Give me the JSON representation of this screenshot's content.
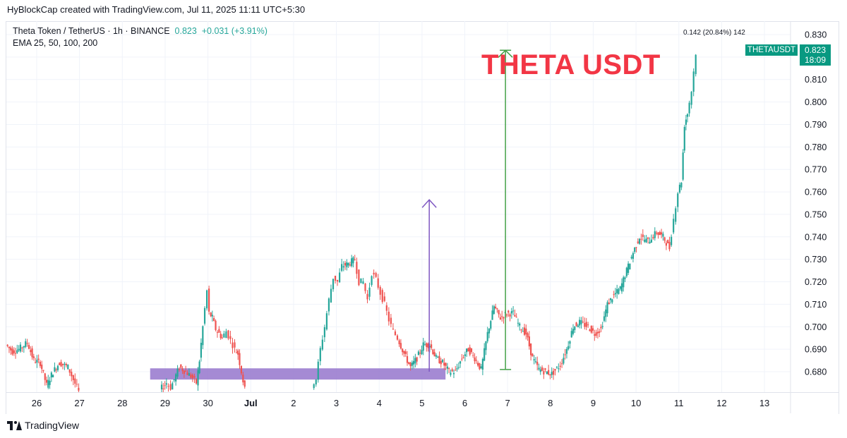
{
  "header": {
    "credit": "HyBlockCap created with TradingView.com, Jul 11, 2025 11:11 UTC+5:30"
  },
  "legend": {
    "symbol": "Theta Token / TetherUS · 1h · BINANCE",
    "last": "0.823",
    "change": "+0.031 (+3.91%)",
    "indicators": "EMA 25, 50, 100, 200"
  },
  "annotation": {
    "title": "THETA USDT",
    "measure": "0.142 (20.84%) 142"
  },
  "price_label": {
    "symbol": "THETAUSDT",
    "price": "0.823",
    "countdown": "18:09"
  },
  "footer": {
    "brand": "TradingView"
  },
  "colors": {
    "up": "#26a69a",
    "down": "#ef5350",
    "zone": "#9575cd",
    "arrow_purple": "#7e57c2",
    "arrow_green": "#43a047",
    "title": "#f23645"
  },
  "chart_data": {
    "type": "candlestick",
    "symbol": "THETAUSDT",
    "interval": "1h",
    "x_labels": [
      "26",
      "27",
      "28",
      "29",
      "30",
      "Jul",
      "2",
      "3",
      "4",
      "5",
      "6",
      "7",
      "8",
      "9",
      "10",
      "11",
      "12",
      "13"
    ],
    "y_ticks": [
      "0.830",
      "0.820",
      "0.810",
      "0.800",
      "0.790",
      "0.780",
      "0.770",
      "0.760",
      "0.750",
      "0.740",
      "0.730",
      "0.720",
      "0.710",
      "0.700",
      "0.690",
      "0.680"
    ],
    "ylim": [
      0.6715,
      0.8335
    ],
    "grid": true,
    "support_zone": {
      "from_day": 2.65,
      "to_day": 9.55,
      "low": 0.6765,
      "high": 0.6815
    },
    "measure_arrow": {
      "day": 10.95,
      "from": 0.681,
      "to": 0.823
    },
    "target_arrow": {
      "day": 9.17,
      "from": 0.68,
      "to": 0.7565
    },
    "path": [
      [
        -0.7,
        0.692
      ],
      [
        -0.55,
        0.689
      ],
      [
        -0.4,
        0.69
      ],
      [
        -0.2,
        0.693
      ],
      [
        -0.05,
        0.685
      ],
      [
        0.1,
        0.684
      ],
      [
        0.25,
        0.674
      ],
      [
        0.4,
        0.68
      ],
      [
        0.55,
        0.684
      ],
      [
        0.75,
        0.682
      ],
      [
        1.0,
        0.671
      ],
      [
        2.9,
        0.672
      ],
      [
        3.05,
        0.675
      ],
      [
        3.15,
        0.673
      ],
      [
        3.35,
        0.682
      ],
      [
        3.5,
        0.68
      ],
      [
        3.62,
        0.678
      ],
      [
        3.75,
        0.675
      ],
      [
        3.82,
        0.685
      ],
      [
        3.9,
        0.7
      ],
      [
        4.0,
        0.716
      ],
      [
        4.05,
        0.706
      ],
      [
        4.12,
        0.704
      ],
      [
        4.2,
        0.699
      ],
      [
        4.28,
        0.697
      ],
      [
        4.35,
        0.695
      ],
      [
        4.45,
        0.698
      ],
      [
        4.55,
        0.694
      ],
      [
        4.65,
        0.69
      ],
      [
        4.72,
        0.688
      ],
      [
        4.8,
        0.68
      ],
      [
        4.88,
        0.672
      ],
      [
        6.45,
        0.674
      ],
      [
        6.55,
        0.677
      ],
      [
        6.65,
        0.69
      ],
      [
        6.75,
        0.7
      ],
      [
        6.85,
        0.712
      ],
      [
        6.95,
        0.722
      ],
      [
        7.05,
        0.72
      ],
      [
        7.15,
        0.727
      ],
      [
        7.3,
        0.728
      ],
      [
        7.45,
        0.73
      ],
      [
        7.55,
        0.72
      ],
      [
        7.65,
        0.72
      ],
      [
        7.75,
        0.712
      ],
      [
        7.85,
        0.724
      ],
      [
        7.95,
        0.721
      ],
      [
        8.05,
        0.715
      ],
      [
        8.15,
        0.71
      ],
      [
        8.25,
        0.703
      ],
      [
        8.35,
        0.698
      ],
      [
        8.45,
        0.695
      ],
      [
        8.6,
        0.688
      ],
      [
        8.75,
        0.682
      ],
      [
        8.9,
        0.686
      ],
      [
        9.05,
        0.692
      ],
      [
        9.2,
        0.692
      ],
      [
        9.35,
        0.686
      ],
      [
        9.5,
        0.684
      ],
      [
        9.65,
        0.68
      ],
      [
        9.8,
        0.68
      ],
      [
        9.95,
        0.686
      ],
      [
        10.1,
        0.69
      ],
      [
        10.25,
        0.686
      ],
      [
        10.4,
        0.681
      ],
      [
        10.55,
        0.697
      ],
      [
        10.7,
        0.709
      ],
      [
        10.85,
        0.704
      ],
      [
        11.0,
        0.706
      ],
      [
        11.15,
        0.706
      ],
      [
        11.3,
        0.7
      ],
      [
        11.45,
        0.697
      ],
      [
        11.6,
        0.686
      ],
      [
        11.75,
        0.681
      ],
      [
        11.9,
        0.68
      ],
      [
        12.05,
        0.679
      ],
      [
        12.25,
        0.683
      ],
      [
        12.4,
        0.69
      ],
      [
        12.55,
        0.7
      ],
      [
        12.7,
        0.702
      ],
      [
        12.9,
        0.7
      ],
      [
        13.05,
        0.697
      ],
      [
        13.2,
        0.699
      ],
      [
        13.35,
        0.71
      ],
      [
        13.5,
        0.714
      ],
      [
        13.65,
        0.717
      ],
      [
        13.8,
        0.725
      ],
      [
        13.95,
        0.733
      ],
      [
        14.1,
        0.74
      ],
      [
        14.3,
        0.738
      ],
      [
        14.5,
        0.742
      ],
      [
        14.65,
        0.74
      ],
      [
        14.8,
        0.735
      ],
      [
        14.9,
        0.748
      ],
      [
        15.0,
        0.76
      ],
      [
        15.08,
        0.765
      ],
      [
        15.15,
        0.79
      ],
      [
        15.22,
        0.795
      ],
      [
        15.32,
        0.805
      ],
      [
        15.42,
        0.822
      ]
    ]
  }
}
